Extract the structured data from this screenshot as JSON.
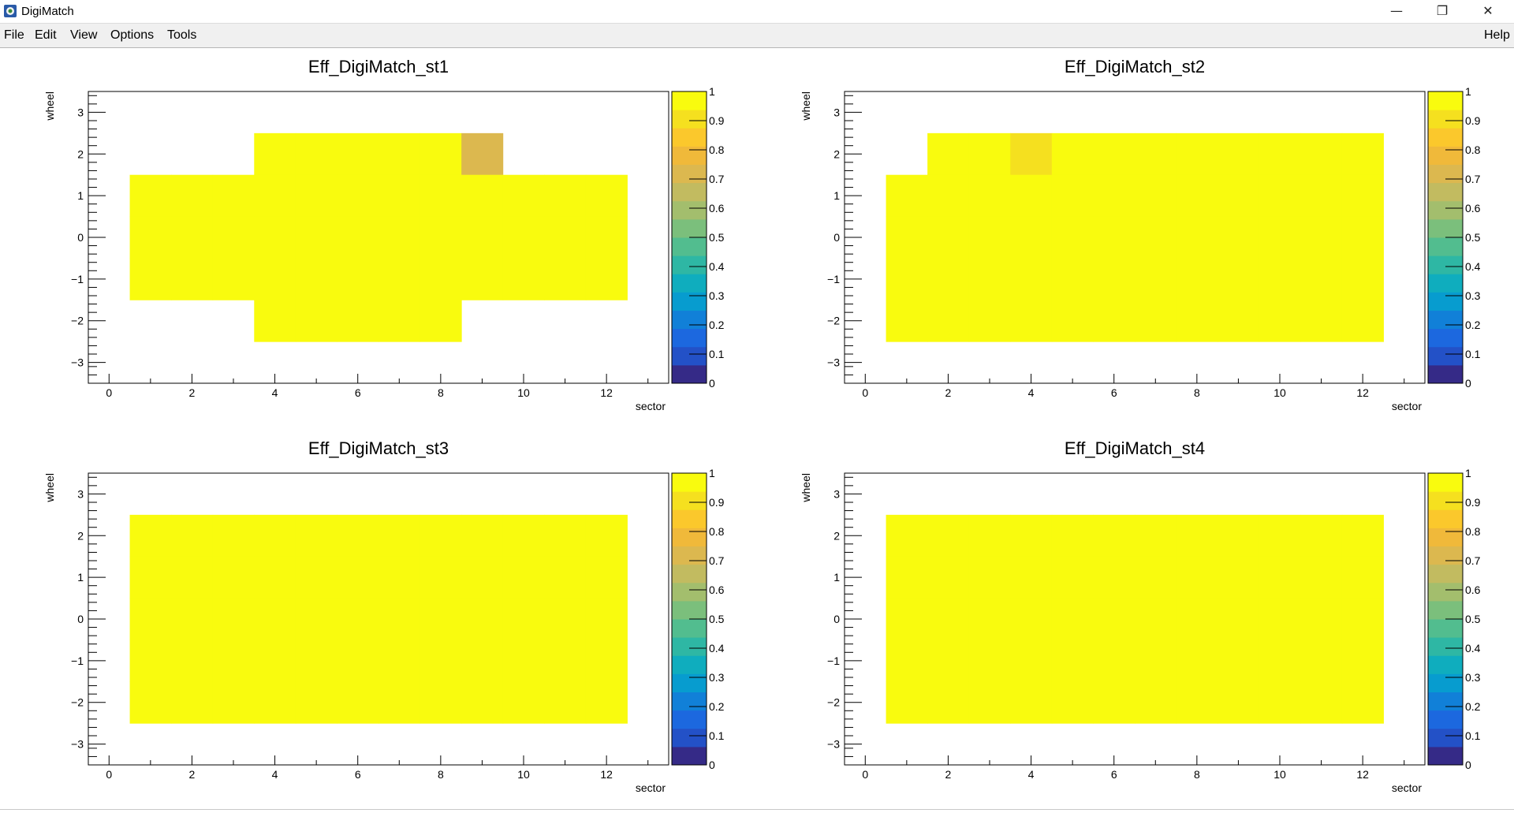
{
  "window": {
    "title": "DigiMatch",
    "controls": {
      "minimize": "—",
      "maximize": "❐",
      "close": "✕"
    }
  },
  "menubar": {
    "items": [
      "File",
      "Edit",
      "View",
      "Options",
      "Tools"
    ],
    "help": "Help"
  },
  "colors": {
    "palette": [
      "#352a87",
      "#2351c7",
      "#1c68df",
      "#1180d8",
      "#079ccf",
      "#0fadbe",
      "#2eb7a4",
      "#52bd8f",
      "#7bbf7c",
      "#a3be6d",
      "#c2bb60",
      "#dcb84f",
      "#f0b93a",
      "#fbc82c",
      "#f5e01f",
      "#f9fb0e"
    ],
    "frame": "#000000",
    "title_text": "#000000"
  },
  "chart_data": [
    {
      "type": "heatmap",
      "title": "Eff_DigiMatch_st1",
      "xlabel": "sector",
      "ylabel": "wheel",
      "xlim": [
        -0.5,
        13.5
      ],
      "ylim": [
        -3.5,
        3.5
      ],
      "x_ticks": [
        "0",
        "2",
        "4",
        "6",
        "8",
        "10",
        "12"
      ],
      "y_ticks": [
        "−3",
        "−2",
        "−1",
        "0",
        "1",
        "2",
        "3"
      ],
      "zlim": [
        0,
        1
      ],
      "colorbar_ticks": [
        "0",
        "0.1",
        "0.2",
        "0.3",
        "0.4",
        "0.5",
        "0.6",
        "0.7",
        "0.8",
        "0.9",
        "1"
      ],
      "x_bins": [
        1,
        2,
        3,
        4,
        5,
        6,
        7,
        8,
        9,
        10,
        11,
        12
      ],
      "y_bins": [
        2,
        1,
        0,
        -1,
        -2
      ],
      "z": [
        [
          null,
          null,
          null,
          1,
          1,
          1,
          1,
          1,
          0.7,
          null,
          null,
          null
        ],
        [
          1,
          1,
          1,
          1,
          1,
          1,
          1,
          1,
          1,
          1,
          0.97,
          0.97
        ],
        [
          1,
          1,
          1,
          1,
          1,
          1,
          1,
          1,
          1,
          1,
          1,
          1
        ],
        [
          1,
          1,
          0.96,
          0.96,
          1,
          1,
          1,
          1,
          0.96,
          1,
          1,
          1
        ],
        [
          null,
          null,
          null,
          1,
          1,
          1,
          1,
          1,
          null,
          null,
          null,
          null
        ]
      ]
    },
    {
      "type": "heatmap",
      "title": "Eff_DigiMatch_st2",
      "xlabel": "sector",
      "ylabel": "wheel",
      "xlim": [
        -0.5,
        13.5
      ],
      "ylim": [
        -3.5,
        3.5
      ],
      "x_ticks": [
        "0",
        "2",
        "4",
        "6",
        "8",
        "10",
        "12"
      ],
      "y_ticks": [
        "−3",
        "−2",
        "−1",
        "0",
        "1",
        "2",
        "3"
      ],
      "zlim": [
        0,
        1
      ],
      "colorbar_ticks": [
        "0",
        "0.1",
        "0.2",
        "0.3",
        "0.4",
        "0.5",
        "0.6",
        "0.7",
        "0.8",
        "0.9",
        "1"
      ],
      "x_bins": [
        1,
        2,
        3,
        4,
        5,
        6,
        7,
        8,
        9,
        10,
        11,
        12
      ],
      "y_bins": [
        2,
        1,
        0,
        -1,
        -2
      ],
      "z": [
        [
          null,
          1,
          1,
          0.92,
          1,
          1,
          1,
          1,
          0.97,
          1,
          1,
          1
        ],
        [
          1,
          1,
          1,
          1,
          1,
          1,
          1,
          1,
          1,
          1,
          1,
          1
        ],
        [
          1,
          1,
          1,
          1,
          1,
          1,
          1,
          1,
          1,
          1,
          1,
          0.97
        ],
        [
          1,
          1,
          1,
          1,
          1,
          1,
          1,
          1,
          1,
          1,
          0.97,
          1
        ],
        [
          1,
          1,
          1,
          1,
          1,
          1,
          1,
          1,
          1,
          1,
          1,
          1
        ]
      ]
    },
    {
      "type": "heatmap",
      "title": "Eff_DigiMatch_st3",
      "xlabel": "sector",
      "ylabel": "wheel",
      "xlim": [
        -0.5,
        13.5
      ],
      "ylim": [
        -3.5,
        3.5
      ],
      "x_ticks": [
        "0",
        "2",
        "4",
        "6",
        "8",
        "10",
        "12"
      ],
      "y_ticks": [
        "−3",
        "−2",
        "−1",
        "0",
        "1",
        "2",
        "3"
      ],
      "zlim": [
        0,
        1
      ],
      "colorbar_ticks": [
        "0",
        "0.1",
        "0.2",
        "0.3",
        "0.4",
        "0.5",
        "0.6",
        "0.7",
        "0.8",
        "0.9",
        "1"
      ],
      "x_bins": [
        1,
        2,
        3,
        4,
        5,
        6,
        7,
        8,
        9,
        10,
        11,
        12
      ],
      "y_bins": [
        2,
        1,
        0,
        -1,
        -2
      ],
      "z": [
        [
          1,
          1,
          1,
          1,
          1,
          1,
          1,
          0.97,
          1,
          1,
          1,
          0.97
        ],
        [
          1,
          1,
          1,
          1,
          1,
          1,
          1,
          1,
          1,
          1,
          1,
          1
        ],
        [
          1,
          1,
          1,
          1,
          1,
          1,
          1,
          1,
          1,
          0.98,
          1,
          1
        ],
        [
          1,
          1,
          1,
          1,
          1,
          1,
          1,
          1,
          1,
          1,
          1,
          1
        ],
        [
          1,
          1,
          1,
          1,
          1,
          1,
          1,
          1,
          1,
          0.98,
          1,
          0.98
        ]
      ]
    },
    {
      "type": "heatmap",
      "title": "Eff_DigiMatch_st4",
      "xlabel": "sector",
      "ylabel": "wheel",
      "xlim": [
        -0.5,
        13.5
      ],
      "ylim": [
        -3.5,
        3.5
      ],
      "x_ticks": [
        "0",
        "2",
        "4",
        "6",
        "8",
        "10",
        "12"
      ],
      "y_ticks": [
        "−3",
        "−2",
        "−1",
        "0",
        "1",
        "2",
        "3"
      ],
      "zlim": [
        0,
        1
      ],
      "colorbar_ticks": [
        "0",
        "0.1",
        "0.2",
        "0.3",
        "0.4",
        "0.5",
        "0.6",
        "0.7",
        "0.8",
        "0.9",
        "1"
      ],
      "x_bins": [
        1,
        2,
        3,
        4,
        5,
        6,
        7,
        8,
        9,
        10,
        11,
        12
      ],
      "y_bins": [
        2,
        1,
        0,
        -1,
        -2
      ],
      "z": [
        [
          1,
          1,
          1,
          1,
          1,
          1,
          1,
          1,
          0.97,
          1,
          1,
          1
        ],
        [
          1,
          1,
          1,
          1,
          1,
          1,
          1,
          0.97,
          1,
          0.97,
          0.97,
          1
        ],
        [
          0.96,
          1,
          1,
          1,
          1,
          1,
          1,
          1,
          1,
          1,
          1,
          1
        ],
        [
          1,
          1,
          1,
          1,
          1,
          1,
          1,
          1,
          1,
          1,
          1,
          1
        ],
        [
          1,
          1,
          1,
          1,
          1,
          1,
          1,
          1,
          1,
          0.97,
          1,
          1
        ]
      ]
    }
  ]
}
